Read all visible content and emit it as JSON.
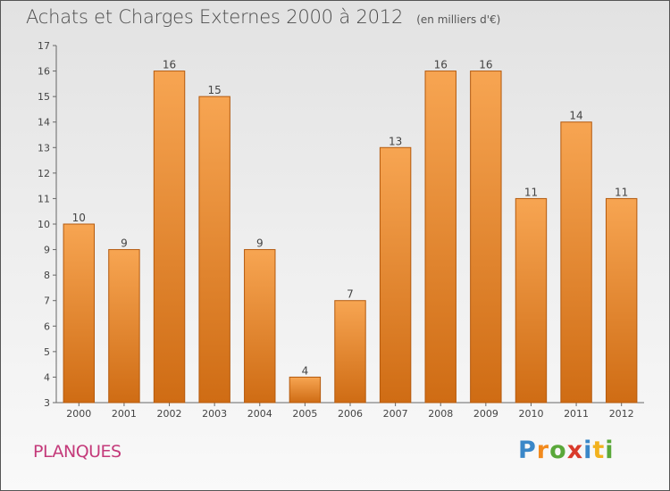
{
  "title": "Achats et Charges Externes 2000 à 2012",
  "subtitle": "(en milliers d'€)",
  "place": "PLANQUES",
  "brand": {
    "letters": [
      {
        "char": "P",
        "color": "#3a87c8"
      },
      {
        "char": "r",
        "color": "#f28a1e"
      },
      {
        "char": "o",
        "color": "#5aa83a"
      },
      {
        "char": "x",
        "color": "#d93a2b"
      },
      {
        "char": "i",
        "color": "#3a87c8"
      },
      {
        "char": "t",
        "color": "#f2b21e"
      },
      {
        "char": "i",
        "color": "#5aa83a"
      }
    ]
  },
  "colors": {
    "bar_light": "#f7a552",
    "bar_dark": "#cf6c14",
    "bar_border": "#b45a0e"
  },
  "chart_data": {
    "type": "bar",
    "categories": [
      "2000",
      "2001",
      "2002",
      "2003",
      "2004",
      "2005",
      "2006",
      "2007",
      "2008",
      "2009",
      "2010",
      "2011",
      "2012"
    ],
    "values": [
      10,
      9,
      16,
      15,
      9,
      4,
      7,
      13,
      16,
      16,
      11,
      14,
      11
    ],
    "data_labels": [
      "10",
      "9",
      "16",
      "15",
      "9",
      "4",
      "7",
      "13",
      "16",
      "16",
      "11",
      "14",
      "11"
    ],
    "ylim": [
      3,
      17
    ],
    "yticks": [
      "3",
      "4",
      "5",
      "6",
      "7",
      "8",
      "9",
      "10",
      "11",
      "12",
      "13",
      "14",
      "15",
      "16",
      "17"
    ],
    "grid": false,
    "legend": "none"
  }
}
